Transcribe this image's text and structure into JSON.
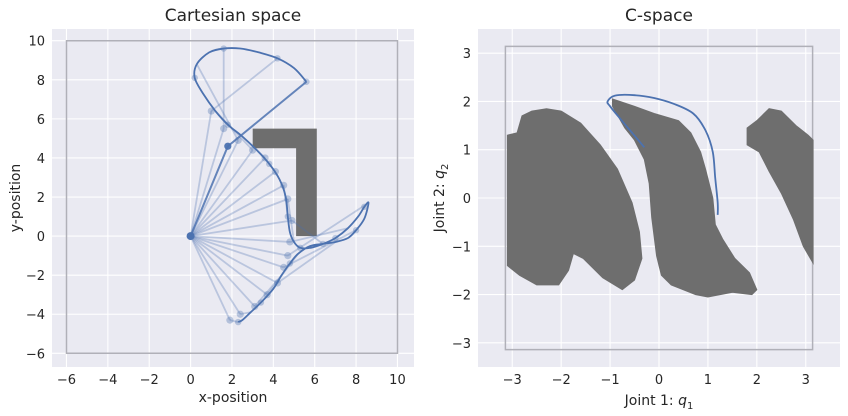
{
  "chart_data": [
    {
      "type": "line",
      "title": "Cartesian space",
      "xlabel": "x-position",
      "ylabel": "y-position",
      "xlim": [
        -6.7,
        10.8
      ],
      "ylim": [
        -6.7,
        10.6
      ],
      "xticks": [
        -6,
        -4,
        -2,
        0,
        2,
        4,
        6,
        8,
        10
      ],
      "yticks": [
        -6,
        -4,
        -2,
        0,
        2,
        4,
        6,
        8,
        10
      ],
      "xtick_labels": [
        "−6",
        "−4",
        "−2",
        "0",
        "2",
        "4",
        "6",
        "8",
        "10"
      ],
      "ytick_labels": [
        "−6",
        "−4",
        "−2",
        "0",
        "2",
        "4",
        "6",
        "8",
        "10"
      ],
      "grid": true,
      "boundary": [
        [
          -6,
          -6
        ],
        [
          10,
          -6
        ],
        [
          10,
          10
        ],
        [
          -6,
          10
        ]
      ],
      "obstacle": [
        [
          3,
          5.5
        ],
        [
          6.1,
          5.5
        ],
        [
          6.1,
          0
        ],
        [
          5.1,
          0
        ],
        [
          5.1,
          4.5
        ],
        [
          3,
          4.5
        ]
      ],
      "base": [
        0,
        0
      ],
      "elbow_path": [
        [
          1.9,
          -4.3
        ],
        [
          2.4,
          -4.0
        ],
        [
          3.1,
          -3.6
        ],
        [
          3.7,
          -3.0
        ],
        [
          4.2,
          -2.4
        ],
        [
          4.5,
          -1.6
        ],
        [
          4.7,
          -1.0
        ],
        [
          4.8,
          -0.3
        ],
        [
          4.9,
          0.8
        ],
        [
          4.7,
          1.9
        ],
        [
          4.5,
          2.6
        ],
        [
          4.1,
          3.3
        ],
        [
          3.6,
          4.0
        ],
        [
          3.0,
          4.4
        ],
        [
          2.3,
          4.9
        ],
        [
          1.6,
          5.5
        ],
        [
          1.0,
          6.4
        ],
        [
          1.8,
          4.6
        ]
      ],
      "effector_path": [
        [
          2.3,
          -4.4
        ],
        [
          2.5,
          -4.3
        ],
        [
          2.9,
          -3.9
        ],
        [
          3.4,
          -3.4
        ],
        [
          4.0,
          -2.7
        ],
        [
          4.4,
          -2.0
        ],
        [
          4.8,
          -1.4
        ],
        [
          5.2,
          -0.9
        ],
        [
          5.8,
          -0.5
        ],
        [
          6.4,
          -0.4
        ],
        [
          7.0,
          -0.3
        ],
        [
          7.6,
          -0.1
        ],
        [
          8.0,
          0.3
        ],
        [
          8.4,
          0.9
        ],
        [
          8.6,
          1.7
        ],
        [
          8.4,
          1.5
        ],
        [
          8.1,
          1.0
        ],
        [
          7.6,
          0.4
        ],
        [
          7.0,
          -0.1
        ],
        [
          6.4,
          -0.4
        ],
        [
          5.8,
          -0.6
        ],
        [
          5.3,
          -0.6
        ],
        [
          5.0,
          -0.3
        ],
        [
          4.8,
          0.2
        ],
        [
          4.7,
          1.0
        ],
        [
          4.6,
          2.0
        ],
        [
          4.3,
          2.9
        ],
        [
          3.8,
          3.7
        ],
        [
          3.2,
          4.4
        ],
        [
          2.5,
          5.1
        ],
        [
          1.8,
          5.7
        ],
        [
          1.2,
          6.4
        ],
        [
          0.6,
          7.3
        ],
        [
          0.2,
          8.1
        ],
        [
          0.3,
          8.8
        ],
        [
          0.9,
          9.4
        ],
        [
          1.6,
          9.6
        ],
        [
          2.4,
          9.6
        ],
        [
          3.3,
          9.4
        ],
        [
          4.2,
          9.1
        ],
        [
          5.0,
          8.6
        ],
        [
          5.6,
          7.9
        ]
      ]
    },
    {
      "type": "line",
      "title": "C-space",
      "xlabel": "Joint 1: q1",
      "ylabel": "Joint 2: q2",
      "xlim": [
        -3.7,
        3.7
      ],
      "ylim": [
        -3.5,
        3.5
      ],
      "xticks": [
        -3,
        -2,
        -1,
        0,
        1,
        2,
        3
      ],
      "yticks": [
        -3,
        -2,
        -1,
        0,
        1,
        2,
        3
      ],
      "xtick_labels": [
        "−3",
        "−2",
        "−1",
        "0",
        "1",
        "2",
        "3"
      ],
      "ytick_labels": [
        "−3",
        "−2",
        "−1",
        "0",
        "1",
        "2",
        "3"
      ],
      "grid": true,
      "boundary": [
        [
          -3.14,
          -3.14
        ],
        [
          3.14,
          -3.14
        ],
        [
          3.14,
          3.14
        ],
        [
          -3.14,
          3.14
        ]
      ],
      "obstacles": [
        [
          [
            -3.1,
            1.3
          ],
          [
            -2.9,
            1.35
          ],
          [
            -2.8,
            1.7
          ],
          [
            -2.6,
            1.8
          ],
          [
            -2.3,
            1.85
          ],
          [
            -2.0,
            1.8
          ],
          [
            -1.6,
            1.55
          ],
          [
            -1.2,
            1.1
          ],
          [
            -0.85,
            0.6
          ],
          [
            -0.55,
            -0.1
          ],
          [
            -0.4,
            -0.7
          ],
          [
            -0.35,
            -1.25
          ],
          [
            -0.5,
            -1.7
          ],
          [
            -0.75,
            -1.9
          ],
          [
            -1.15,
            -1.65
          ],
          [
            -1.55,
            -1.25
          ],
          [
            -1.75,
            -1.15
          ],
          [
            -1.85,
            -1.5
          ],
          [
            -2.05,
            -1.8
          ],
          [
            -2.5,
            -1.8
          ],
          [
            -2.85,
            -1.6
          ],
          [
            -3.1,
            -1.4
          ]
        ],
        [
          [
            -0.95,
            2.05
          ],
          [
            -0.5,
            1.9
          ],
          [
            -0.1,
            1.75
          ],
          [
            0.4,
            1.6
          ],
          [
            0.65,
            1.35
          ],
          [
            0.85,
            0.95
          ],
          [
            0.95,
            0.6
          ],
          [
            1.1,
            0.0
          ],
          [
            1.15,
            -0.55
          ],
          [
            1.3,
            -0.85
          ],
          [
            1.55,
            -1.25
          ],
          [
            1.85,
            -1.55
          ],
          [
            2.0,
            -1.9
          ],
          [
            1.9,
            -2.0
          ],
          [
            1.5,
            -1.95
          ],
          [
            1.0,
            -2.05
          ],
          [
            0.75,
            -2.0
          ],
          [
            0.25,
            -1.8
          ],
          [
            0.05,
            -1.6
          ],
          [
            -0.05,
            -1.2
          ],
          [
            -0.15,
            -0.4
          ],
          [
            -0.2,
            0.3
          ],
          [
            -0.3,
            0.8
          ],
          [
            -0.5,
            1.2
          ],
          [
            -0.7,
            1.45
          ],
          [
            -0.95,
            1.9
          ]
        ],
        [
          [
            2.0,
            1.6
          ],
          [
            2.25,
            1.85
          ],
          [
            2.5,
            1.8
          ],
          [
            2.8,
            1.5
          ],
          [
            3.05,
            1.3
          ],
          [
            3.15,
            1.2
          ],
          [
            3.15,
            -1.35
          ],
          [
            2.95,
            -1.0
          ],
          [
            2.75,
            -0.45
          ],
          [
            2.5,
            0.1
          ],
          [
            2.25,
            0.55
          ],
          [
            2.05,
            0.95
          ],
          [
            1.8,
            1.1
          ],
          [
            1.8,
            1.45
          ]
        ]
      ],
      "path": [
        [
          1.2,
          -0.35
        ],
        [
          1.2,
          -0.1
        ],
        [
          1.15,
          0.4
        ],
        [
          1.1,
          0.95
        ],
        [
          0.95,
          1.4
        ],
        [
          0.7,
          1.75
        ],
        [
          0.3,
          1.95
        ],
        [
          -0.1,
          2.07
        ],
        [
          -0.5,
          2.13
        ],
        [
          -0.9,
          2.12
        ],
        [
          -1.05,
          2.0
        ],
        [
          -1.0,
          1.9
        ],
        [
          -0.8,
          1.65
        ],
        [
          -0.55,
          1.35
        ],
        [
          -0.3,
          1.05
        ]
      ]
    }
  ]
}
